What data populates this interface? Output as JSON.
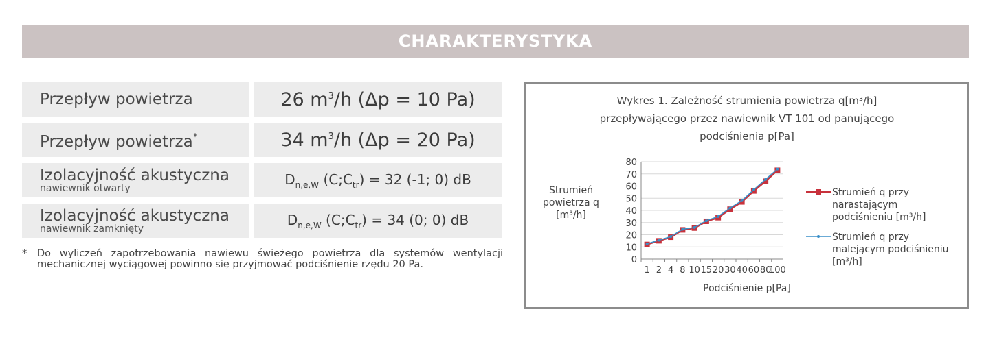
{
  "header": {
    "title": "CHARAKTERYSTYKA"
  },
  "specs": [
    {
      "label": "Przepływ powietrza",
      "value_num": "26",
      "value_unit": " m",
      "value_exp": "3",
      "value_rest": "/h (Δp = 10 Pa)"
    },
    {
      "label": "Przepływ powietrza",
      "label_mark": "*",
      "value_num": "34",
      "value_unit": " m",
      "value_exp": "3",
      "value_rest": "/h (Δp = 20 Pa)"
    },
    {
      "label": "Izolacyjność akustyczna",
      "sublabel": "nawiewnik otwarty",
      "value_a": "D",
      "value_sub1": "n,e,W",
      "value_b": " (C;C",
      "value_sub2": "tr",
      "value_c": ") = 32 (-1; 0) dB"
    },
    {
      "label": "Izolacyjność akustyczna",
      "sublabel": "nawiewnik zamknięty",
      "value_a": "D",
      "value_sub1": "n,e,W",
      "value_b": " (C;C",
      "value_sub2": "tr",
      "value_c": ") = 34 (0; 0) dB"
    }
  ],
  "footnote": {
    "marker": "*",
    "text": "Do wyliczeń zapotrzebowania nawiewu świeżego powietrza dla systemów wentylacji mechanicznej wyciągowej powinno się przyjmować podciśnienie rzędu 20 Pa."
  },
  "chart_data": {
    "type": "line",
    "title": [
      "Wykres 1. Zależność strumienia powietrza q[m³/h]",
      "przepływającego przez nawiewnik VT 101 od panującego",
      "podciśnienia p[Pa]"
    ],
    "xlabel": "Podciśnienie p[Pa]",
    "ylabel": [
      "Strumień",
      "powietrza q",
      "[m³/h]"
    ],
    "categories": [
      "1",
      "2",
      "4",
      "8",
      "10",
      "15",
      "20",
      "30",
      "40",
      "60",
      "80",
      "100"
    ],
    "ylim": [
      0,
      80
    ],
    "yticks": [
      "0",
      "10",
      "20",
      "30",
      "40",
      "50",
      "60",
      "70",
      "80"
    ],
    "grid": true,
    "legend_position": "right",
    "series": [
      {
        "name": [
          "Strumień q przy",
          "narastającym",
          "podciśnieniu [m³/h]"
        ],
        "values": [
          12,
          15,
          18,
          24,
          25.5,
          31,
          34,
          41,
          47,
          56,
          64,
          73
        ],
        "color": "#c8323c",
        "marker": "square"
      },
      {
        "name": [
          "Strumień q przy",
          "malejącym podciśnieniu",
          "[m³/h]"
        ],
        "values": [
          12.5,
          15.5,
          18.5,
          24.5,
          26,
          31.5,
          35,
          42,
          48,
          57,
          65.5,
          74
        ],
        "color": "#3a8fc8",
        "marker": "dot"
      }
    ]
  }
}
